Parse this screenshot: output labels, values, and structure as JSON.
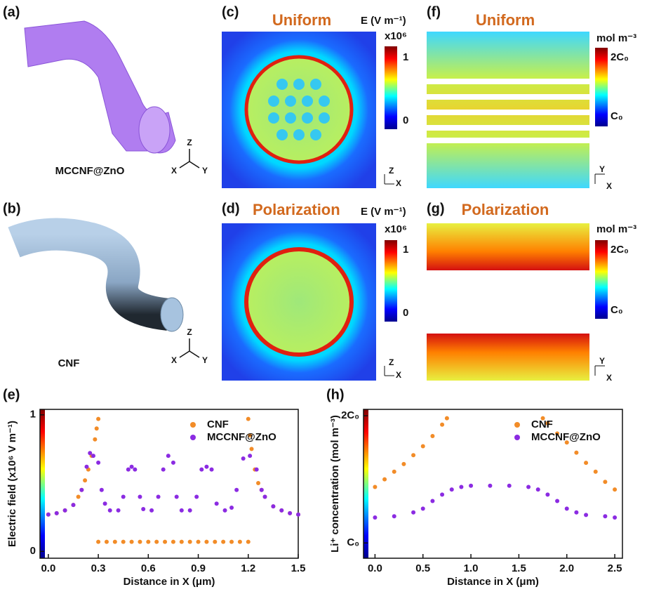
{
  "panels": {
    "a": {
      "label": "(a)",
      "name": "MCCNF@ZnO",
      "axes": [
        "Z",
        "X",
        "Y"
      ]
    },
    "b": {
      "label": "(b)",
      "name": "CNF",
      "axes": [
        "Z",
        "X",
        "Y"
      ]
    },
    "c": {
      "label": "(c)",
      "title": "Uniform",
      "unit": "E (V m⁻¹)",
      "scale": "x10⁶",
      "cbar_ticks": [
        "1",
        "0"
      ],
      "axes": [
        "Z",
        "X"
      ]
    },
    "d": {
      "label": "(d)",
      "title": "Polarization",
      "unit": "E (V m⁻¹)",
      "scale": "x10⁶",
      "cbar_ticks": [
        "1",
        "0"
      ],
      "axes": [
        "Z",
        "X"
      ]
    },
    "f": {
      "label": "(f)",
      "title": "Uniform",
      "unit": "mol m⁻³",
      "cbar_ticks": [
        "2C₀",
        "C₀"
      ],
      "axes": [
        "Y",
        "X"
      ]
    },
    "g": {
      "label": "(g)",
      "title": "Polarization",
      "unit": "mol m⁻³",
      "cbar_ticks": [
        "2C₀",
        "C₀"
      ],
      "axes": [
        "Y",
        "X"
      ]
    }
  },
  "chart_data": [
    {
      "type": "scatter",
      "panel_label": "(e)",
      "xlabel": "Distance in X (μm)",
      "ylabel": "Electric field (x10⁶ V m⁻¹)",
      "xlim": [
        -0.05,
        1.5
      ],
      "ylim": [
        -0.05,
        1.04
      ],
      "xticks": [
        {
          "value": 0,
          "label": "0.0"
        },
        {
          "value": 0.3,
          "label": "0.3"
        },
        {
          "value": 0.6,
          "label": "0.6"
        },
        {
          "value": 0.9,
          "label": "0.9"
        },
        {
          "value": 1.2,
          "label": "1.2"
        },
        {
          "value": 1.5,
          "label": "1.5"
        }
      ],
      "yticks": [
        0,
        1
      ],
      "legend": "upper right",
      "series": [
        {
          "name": "CNF",
          "color": "#f28c28",
          "x": [
            0,
            0.05,
            0.1,
            0.15,
            0.18,
            0.2,
            0.22,
            0.24,
            0.26,
            0.28,
            0.29,
            0.3,
            0.3,
            0.35,
            0.4,
            0.45,
            0.5,
            0.55,
            0.6,
            0.65,
            0.7,
            0.75,
            0.8,
            0.85,
            0.9,
            0.95,
            1.0,
            1.05,
            1.1,
            1.15,
            1.2,
            1.2,
            1.21,
            1.22,
            1.24,
            1.26,
            1.28,
            1.3,
            1.35,
            1.4,
            1.45,
            1.5
          ],
          "values": [
            0.27,
            0.28,
            0.3,
            0.34,
            0.4,
            0.45,
            0.52,
            0.6,
            0.7,
            0.82,
            0.9,
            0.97,
            0.07,
            0.07,
            0.07,
            0.07,
            0.07,
            0.07,
            0.07,
            0.07,
            0.07,
            0.07,
            0.07,
            0.07,
            0.07,
            0.07,
            0.07,
            0.07,
            0.07,
            0.07,
            0.07,
            0.97,
            0.85,
            0.75,
            0.6,
            0.5,
            0.45,
            0.4,
            0.33,
            0.3,
            0.28,
            0.27
          ]
        },
        {
          "name": "MCCNF@ZnO",
          "color": "#8b2be2",
          "x": [
            0,
            0.05,
            0.1,
            0.15,
            0.2,
            0.23,
            0.25,
            0.27,
            0.3,
            0.32,
            0.34,
            0.37,
            0.42,
            0.45,
            0.48,
            0.5,
            0.52,
            0.55,
            0.57,
            0.62,
            0.66,
            0.69,
            0.72,
            0.75,
            0.77,
            0.8,
            0.85,
            0.89,
            0.92,
            0.95,
            0.98,
            1.01,
            1.06,
            1.1,
            1.13,
            1.17,
            1.21,
            1.25,
            1.28,
            1.3,
            1.35,
            1.4,
            1.45,
            1.5
          ],
          "values": [
            0.27,
            0.28,
            0.3,
            0.34,
            0.45,
            0.62,
            0.72,
            0.7,
            0.65,
            0.45,
            0.35,
            0.3,
            0.3,
            0.4,
            0.6,
            0.62,
            0.6,
            0.4,
            0.31,
            0.3,
            0.4,
            0.6,
            0.7,
            0.65,
            0.4,
            0.3,
            0.3,
            0.4,
            0.6,
            0.62,
            0.6,
            0.35,
            0.3,
            0.32,
            0.45,
            0.68,
            0.7,
            0.6,
            0.45,
            0.4,
            0.33,
            0.3,
            0.28,
            0.27
          ]
        }
      ]
    },
    {
      "type": "scatter",
      "panel_label": "(h)",
      "xlabel": "Distance in X (μm)",
      "ylabel": "Li⁺ concentration (mol m⁻³)",
      "xlim": [
        -0.12,
        2.58
      ],
      "ylim": [
        0.88,
        2.05
      ],
      "xticks": [
        {
          "value": 0,
          "label": "0.0"
        },
        {
          "value": 0.5,
          "label": "0.5"
        },
        {
          "value": 1,
          "label": "1.0"
        },
        {
          "value": 1.5,
          "label": "1.5"
        },
        {
          "value": 2,
          "label": "2.0"
        },
        {
          "value": 2.5,
          "label": "2.5"
        }
      ],
      "yticks": [
        {
          "value": 1,
          "label": "C₀"
        },
        {
          "value": 2,
          "label": "2C₀"
        }
      ],
      "legend": "upper right",
      "series": [
        {
          "name": "CNF",
          "color": "#f28c28",
          "x": [
            0,
            0.1,
            0.2,
            0.3,
            0.4,
            0.5,
            0.6,
            0.7,
            0.75,
            1.75,
            1.8,
            1.9,
            2.0,
            2.1,
            2.2,
            2.3,
            2.4,
            2.5
          ],
          "values": [
            1.44,
            1.5,
            1.56,
            1.62,
            1.69,
            1.76,
            1.84,
            1.93,
            1.98,
            1.98,
            1.94,
            1.86,
            1.79,
            1.71,
            1.63,
            1.56,
            1.48,
            1.42
          ]
        },
        {
          "name": "MCCNF@ZnO",
          "color": "#8b2be2",
          "x": [
            0,
            0.2,
            0.4,
            0.5,
            0.6,
            0.7,
            0.8,
            0.9,
            1.0,
            1.2,
            1.4,
            1.6,
            1.7,
            1.8,
            1.9,
            2.0,
            2.1,
            2.2,
            2.4,
            2.5
          ],
          "values": [
            1.2,
            1.21,
            1.24,
            1.27,
            1.33,
            1.38,
            1.42,
            1.44,
            1.45,
            1.45,
            1.45,
            1.44,
            1.42,
            1.38,
            1.33,
            1.27,
            1.24,
            1.22,
            1.21,
            1.2
          ]
        }
      ]
    }
  ]
}
